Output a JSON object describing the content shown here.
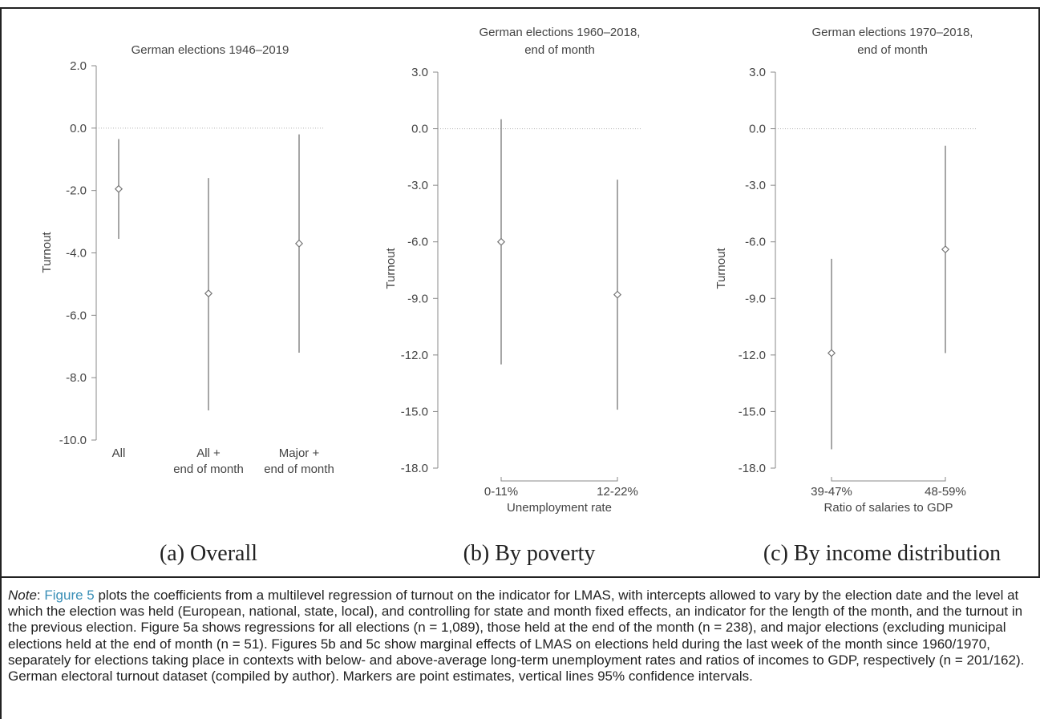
{
  "colors": {
    "marker": "#777777",
    "line": "#777777",
    "zero_line": "#b5b5b5",
    "link": "#3a8fb7"
  },
  "chart_data": [
    {
      "type": "scatter",
      "title": "German elections 1946–2019",
      "ylabel": "Turnout",
      "xlabel": "",
      "ylim": [
        -10,
        2
      ],
      "yticks": [
        "2.0",
        "0.0",
        "-2.0",
        "-4.0",
        "-6.0",
        "-8.0",
        "-10.0"
      ],
      "ytick_values": [
        2,
        0,
        -2,
        -4,
        -6,
        -8,
        -10
      ],
      "reference_line": 0,
      "categories": [
        [
          "All"
        ],
        [
          "All +",
          "end of month"
        ],
        [
          "Major +",
          "end of month"
        ]
      ],
      "points": [
        {
          "y": -1.95,
          "ci": [
            -3.55,
            -0.35
          ]
        },
        {
          "y": -5.3,
          "ci": [
            -9.05,
            -1.6
          ]
        },
        {
          "y": -3.7,
          "ci": [
            -7.2,
            -0.2
          ]
        }
      ]
    },
    {
      "type": "scatter",
      "title": [
        "German elections 1960–2018,",
        "end of month"
      ],
      "ylabel": "Turnout",
      "xlabel": "Unemployment rate",
      "ylim": [
        -18,
        3
      ],
      "yticks": [
        "3.0",
        "0.0",
        "-3.0",
        "-6.0",
        "-9.0",
        "-12.0",
        "-15.0",
        "-18.0"
      ],
      "ytick_values": [
        3,
        0,
        -3,
        -6,
        -9,
        -12,
        -15,
        -18
      ],
      "reference_line": 0,
      "categories": [
        [
          "0-11%"
        ],
        [
          "12-22%"
        ]
      ],
      "points": [
        {
          "y": -6.0,
          "ci": [
            -12.5,
            0.5
          ]
        },
        {
          "y": -8.8,
          "ci": [
            -14.9,
            -2.7
          ]
        }
      ]
    },
    {
      "type": "scatter",
      "title": [
        "German elections 1970–2018,",
        "end of month"
      ],
      "ylabel": "Turnout",
      "xlabel": "Ratio of salaries to GDP",
      "ylim": [
        -18,
        3
      ],
      "yticks": [
        "3.0",
        "0.0",
        "-3.0",
        "-6.0",
        "-9.0",
        "-12.0",
        "-15.0",
        "-18.0"
      ],
      "ytick_values": [
        3,
        0,
        -3,
        -6,
        -9,
        -12,
        -15,
        -18
      ],
      "reference_line": 0,
      "categories": [
        [
          "39-47%"
        ],
        [
          "48-59%"
        ]
      ],
      "points": [
        {
          "y": -11.9,
          "ci": [
            -17.0,
            -6.9
          ]
        },
        {
          "y": -6.4,
          "ci": [
            -11.9,
            -0.9
          ]
        }
      ]
    }
  ],
  "captions": {
    "a": "(a) Overall",
    "b": "(b) By poverty",
    "c": "(c) By income distribution"
  },
  "note": {
    "label": "Note",
    "link": "Figure 5",
    "body": " plots the coefficients from a multilevel regression of turnout on the indicator for LMAS, with intercepts allowed to vary by the election date and the level at which the election was held (European, national, state, local), and controlling for state and month fixed effects, an indicator for the length of the month, and the turnout in the previous election. Figure 5a shows regressions for all elections (n = 1,089), those held at the end of the month (n = 238), and major elections (excluding municipal elections held at the end of month (n = 51). Figures 5b and 5c show marginal effects of LMAS on elections held during the last week of the month since 1960/1970, separately for elections taking place in contexts with below- and above-average long-term unemployment rates and ratios of incomes to GDP, respectively (n = 201/162). German electoral turnout dataset (compiled by author). Markers are point estimates, vertical lines 95% confidence intervals."
  }
}
